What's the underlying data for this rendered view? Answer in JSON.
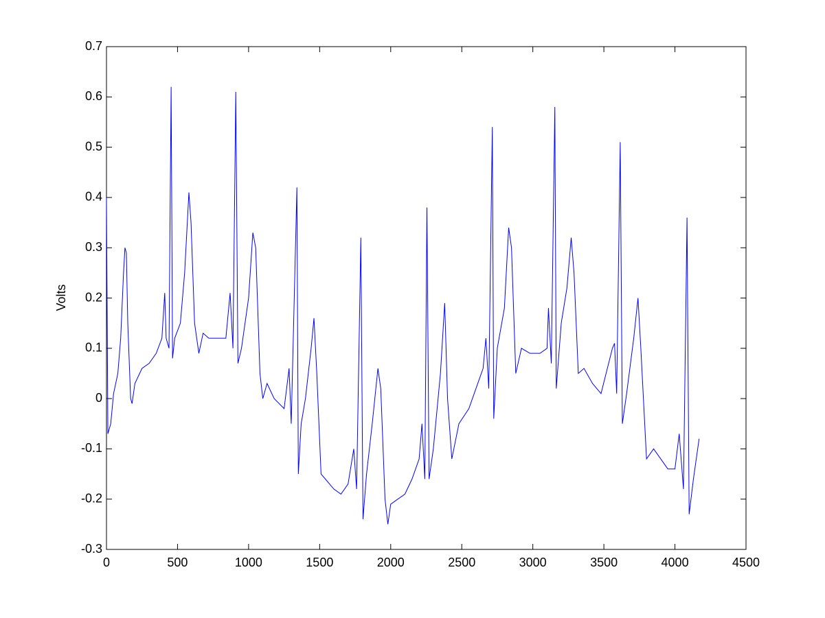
{
  "chart_data": {
    "type": "line",
    "y_label": "Volts",
    "x": [
      0,
      10,
      30,
      50,
      80,
      100,
      120,
      130,
      140,
      150,
      170,
      180,
      200,
      250,
      300,
      350,
      390,
      410,
      420,
      440,
      455,
      465,
      480,
      520,
      550,
      580,
      595,
      620,
      650,
      680,
      720,
      780,
      840,
      870,
      890,
      910,
      925,
      950,
      1000,
      1030,
      1050,
      1080,
      1100,
      1130,
      1180,
      1250,
      1285,
      1300,
      1340,
      1350,
      1370,
      1400,
      1440,
      1460,
      1480,
      1510,
      1540,
      1600,
      1650,
      1700,
      1740,
      1760,
      1790,
      1805,
      1830,
      1870,
      1910,
      1930,
      1960,
      1980,
      2000,
      2050,
      2100,
      2150,
      2200,
      2220,
      2240,
      2255,
      2270,
      2300,
      2350,
      2380,
      2400,
      2430,
      2480,
      2550,
      2600,
      2650,
      2670,
      2690,
      2715,
      2725,
      2750,
      2800,
      2830,
      2850,
      2880,
      2920,
      2980,
      3050,
      3100,
      3110,
      3130,
      3155,
      3165,
      3200,
      3240,
      3270,
      3290,
      3320,
      3360,
      3420,
      3480,
      3560,
      3575,
      3590,
      3615,
      3630,
      3660,
      3710,
      3740,
      3760,
      3800,
      3850,
      3900,
      3950,
      4000,
      4030,
      4060,
      4085,
      4100,
      4130,
      4170
    ],
    "series": [
      {
        "color": "#0000ff",
        "values": [
          0.4,
          -0.07,
          -0.05,
          0.01,
          0.05,
          0.12,
          0.25,
          0.3,
          0.29,
          0.15,
          0.0,
          -0.01,
          0.03,
          0.06,
          0.07,
          0.09,
          0.12,
          0.21,
          0.12,
          0.1,
          0.62,
          0.08,
          0.12,
          0.15,
          0.25,
          0.41,
          0.35,
          0.15,
          0.09,
          0.13,
          0.12,
          0.12,
          0.12,
          0.21,
          0.1,
          0.61,
          0.07,
          0.1,
          0.2,
          0.33,
          0.3,
          0.05,
          0.0,
          0.03,
          0.0,
          -0.02,
          0.06,
          -0.05,
          0.42,
          -0.15,
          -0.05,
          0.0,
          0.1,
          0.16,
          0.05,
          -0.15,
          -0.16,
          -0.18,
          -0.19,
          -0.17,
          -0.1,
          -0.18,
          0.32,
          -0.24,
          -0.15,
          -0.05,
          0.06,
          0.02,
          -0.2,
          -0.25,
          -0.21,
          -0.2,
          -0.19,
          -0.16,
          -0.12,
          -0.05,
          -0.16,
          0.38,
          -0.16,
          -0.1,
          0.05,
          0.19,
          0.0,
          -0.12,
          -0.05,
          -0.02,
          0.02,
          0.06,
          0.12,
          0.02,
          0.54,
          -0.04,
          0.1,
          0.18,
          0.34,
          0.3,
          0.05,
          0.1,
          0.09,
          0.09,
          0.1,
          0.18,
          0.07,
          0.58,
          0.02,
          0.15,
          0.22,
          0.32,
          0.25,
          0.05,
          0.06,
          0.03,
          0.01,
          0.1,
          0.11,
          0.01,
          0.51,
          -0.05,
          0.01,
          0.12,
          0.2,
          0.1,
          -0.12,
          -0.1,
          -0.12,
          -0.14,
          -0.14,
          -0.07,
          -0.18,
          0.36,
          -0.23,
          -0.16,
          -0.08
        ]
      }
    ],
    "xlim": [
      0,
      4500
    ],
    "xticks": [
      0,
      500,
      1000,
      1500,
      2000,
      2500,
      3000,
      3500,
      4000,
      4500
    ],
    "ylim": [
      -0.3,
      0.7
    ],
    "yticks": [
      -0.3,
      -0.2,
      -0.1,
      0,
      0.1,
      0.2,
      0.3,
      0.4,
      0.5,
      0.6,
      0.7
    ]
  }
}
